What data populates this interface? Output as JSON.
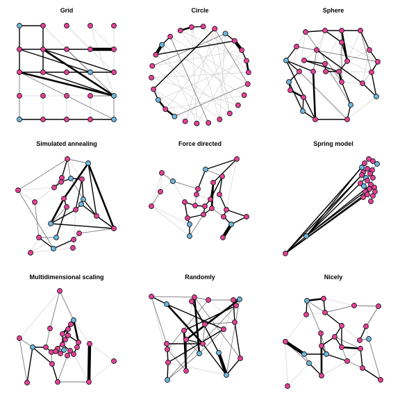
{
  "colors": {
    "pink": "#e7419a",
    "blue": "#6cb8e2",
    "edge_strong": "#000000",
    "edge_mid": "#7a7a7a",
    "edge_light": "#d6d6d6"
  },
  "panels": [
    {
      "title": "Grid"
    },
    {
      "title": "Circle"
    },
    {
      "title": "Sphere"
    },
    {
      "title": "Simulated annealing"
    },
    {
      "title": "Force directed"
    },
    {
      "title": "Spring model"
    },
    {
      "title": "Multidimensional scaling"
    },
    {
      "title": "Randomly"
    },
    {
      "title": "Nicely"
    }
  ]
}
